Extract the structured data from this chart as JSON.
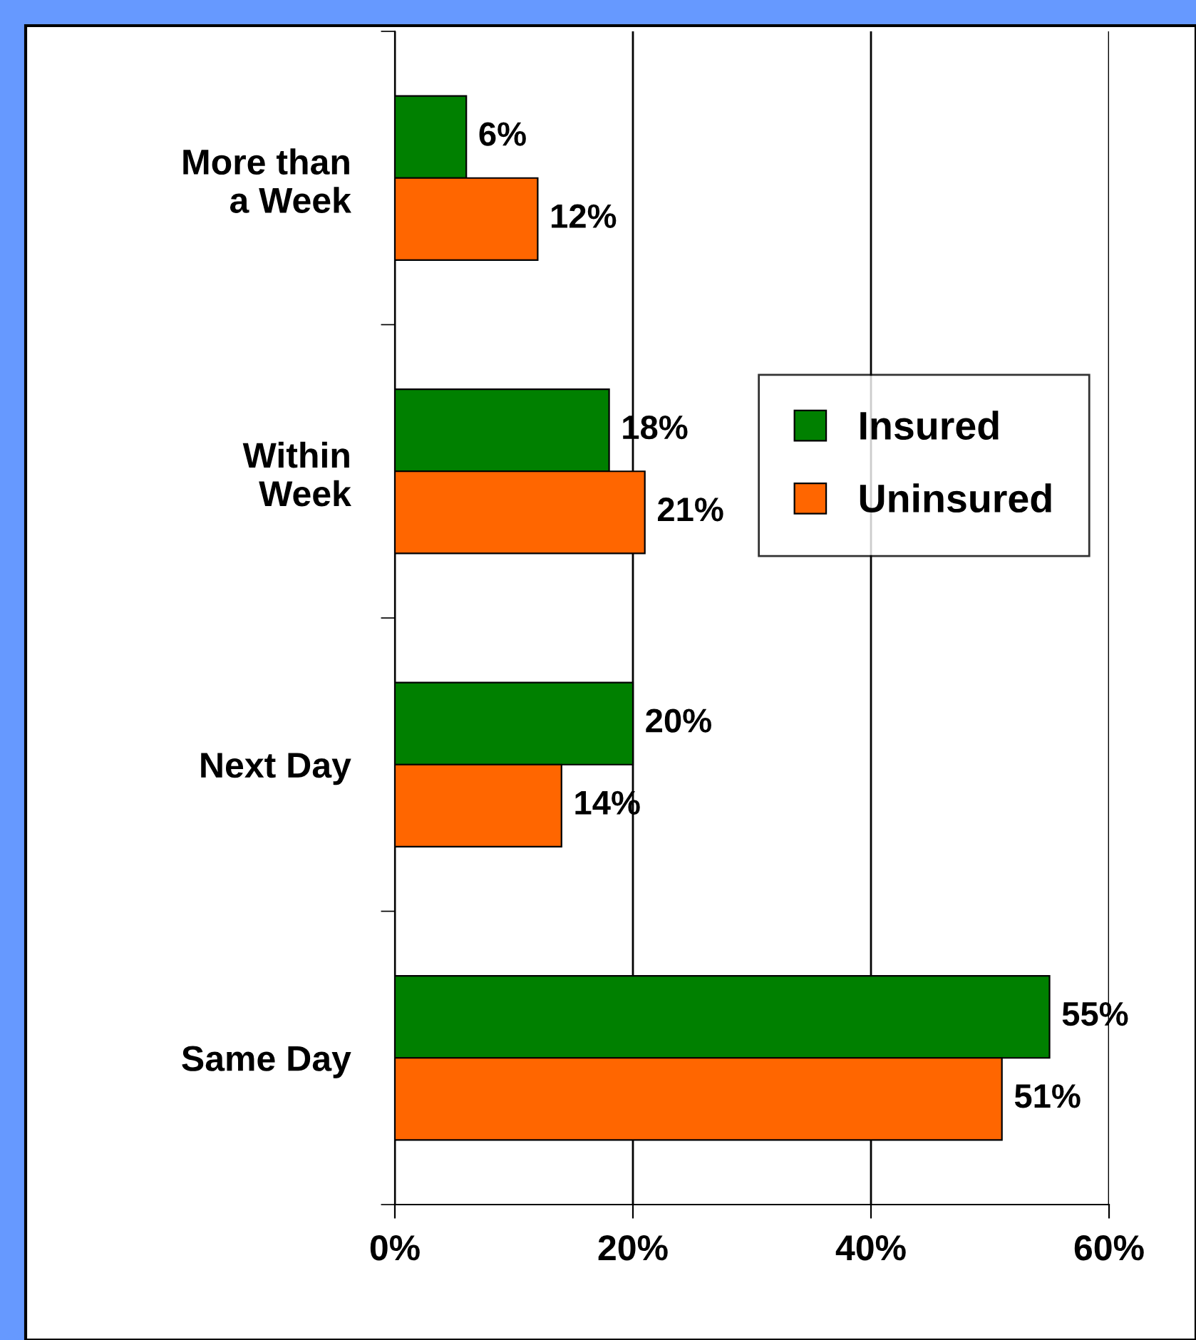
{
  "chart_data": {
    "type": "bar",
    "orientation": "horizontal",
    "categories": [
      "More than\na Week",
      "Within\nWeek",
      "Next Day",
      "Same Day"
    ],
    "series": [
      {
        "name": "Insured",
        "color": "#008000",
        "values": [
          6,
          18,
          20,
          55
        ],
        "value_labels": [
          "6%",
          "18%",
          "20%",
          "55%"
        ]
      },
      {
        "name": "Uninsured",
        "color": "#ff6600",
        "values": [
          12,
          21,
          14,
          51
        ],
        "value_labels": [
          "12%",
          "21%",
          "14%",
          "51%"
        ]
      }
    ],
    "xlim": [
      0,
      60
    ],
    "xticks": [
      {
        "value": 0,
        "label": "0%"
      },
      {
        "value": 20,
        "label": "20%"
      },
      {
        "value": 40,
        "label": "40%"
      },
      {
        "value": 60,
        "label": "60%"
      }
    ],
    "grid": "x",
    "legend": "right"
  }
}
